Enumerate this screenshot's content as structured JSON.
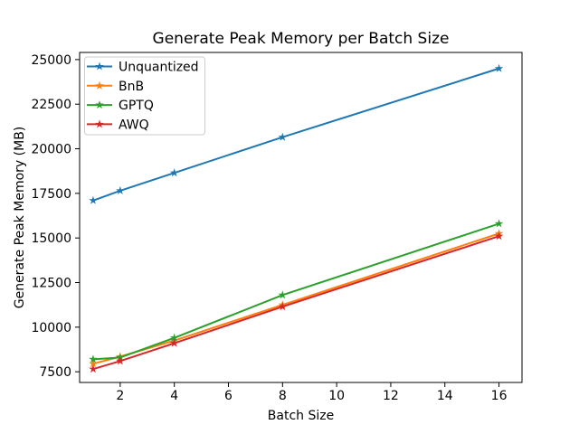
{
  "chart_data": {
    "type": "line",
    "title": "Generate Peak Memory per Batch Size",
    "xlabel": "Batch Size",
    "ylabel": "Generate Peak Memory (MB)",
    "x": [
      1,
      2,
      4,
      8,
      16
    ],
    "series": [
      {
        "name": "Unquantized",
        "color": "#1f77b4",
        "values": [
          17100,
          17650,
          18650,
          20650,
          24500
        ]
      },
      {
        "name": "BnB",
        "color": "#ff7f0e",
        "values": [
          7950,
          8350,
          9250,
          11250,
          15250
        ]
      },
      {
        "name": "GPTQ",
        "color": "#2ca02c",
        "values": [
          8200,
          8300,
          9400,
          11800,
          15800
        ]
      },
      {
        "name": "AWQ",
        "color": "#d62728",
        "values": [
          7650,
          8100,
          9100,
          11150,
          15100
        ]
      }
    ],
    "x_ticks": [
      2,
      4,
      6,
      8,
      10,
      12,
      14,
      16
    ],
    "y_ticks": [
      7500,
      10000,
      12500,
      15000,
      17500,
      20000,
      22500,
      25000
    ],
    "xlim": [
      0.5,
      16.85
    ],
    "ylim": [
      6900,
      25400
    ],
    "grid": false,
    "marker": "star",
    "line_width": 2,
    "legend": {
      "position": "upper-left",
      "entries": [
        "Unquantized",
        "BnB",
        "GPTQ",
        "AWQ"
      ],
      "border_color": "#cccccc",
      "background": "rgba(255,255,255,0.8)"
    },
    "axis_color": "#000000",
    "background": "#ffffff"
  }
}
